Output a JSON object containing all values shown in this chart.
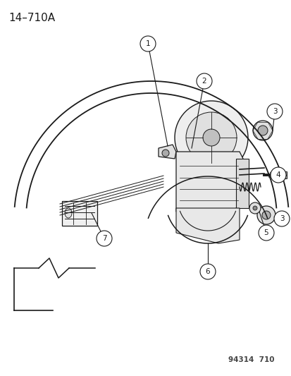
{
  "title_label": "14–710A",
  "watermark": "94314  710",
  "bg_color": "#ffffff",
  "title_fontsize": 11,
  "watermark_fontsize": 7.5,
  "fig_width": 4.14,
  "fig_height": 5.33,
  "dpi": 100,
  "line_color": "#1a1a1a",
  "callout_r": 0.022
}
